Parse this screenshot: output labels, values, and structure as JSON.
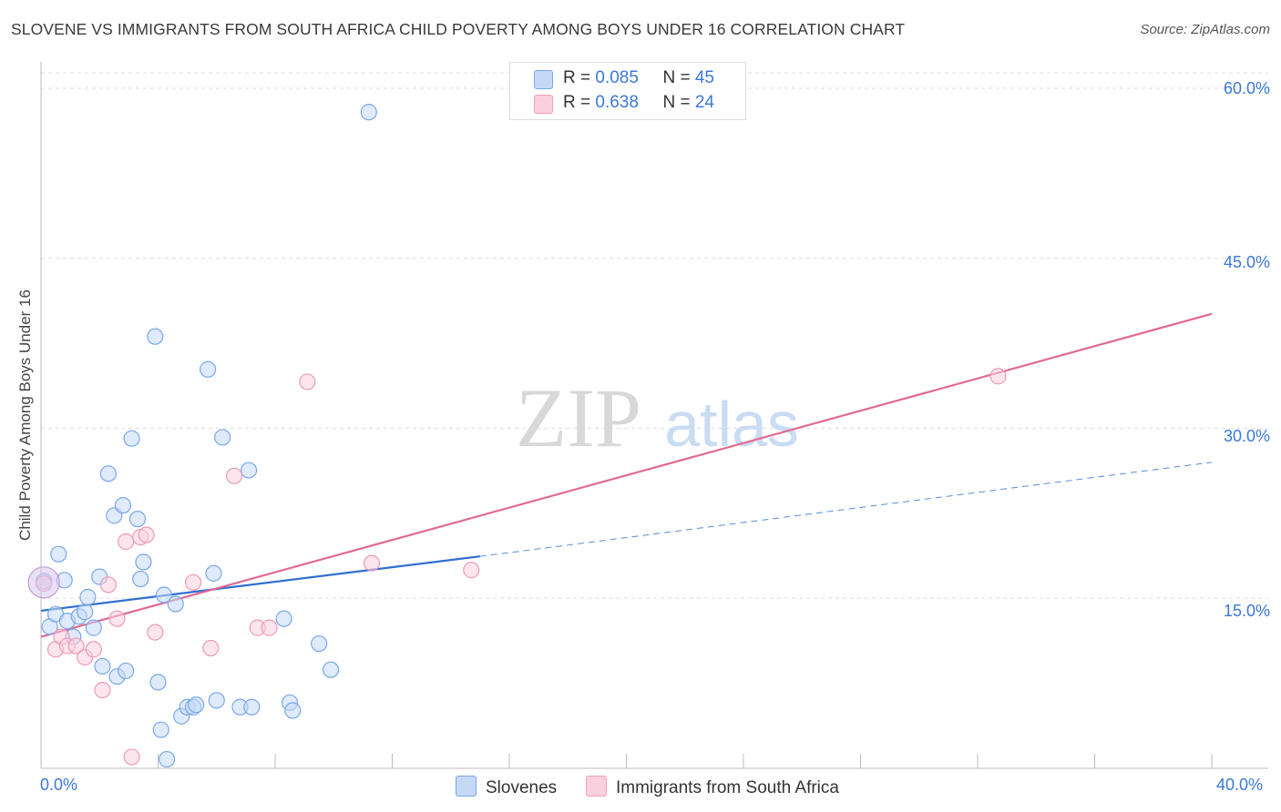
{
  "header": {
    "title": "SLOVENE VS IMMIGRANTS FROM SOUTH AFRICA CHILD POVERTY AMONG BOYS UNDER 16 CORRELATION CHART",
    "source": "Source: ZipAtlas.com"
  },
  "watermark": {
    "zip": "ZIP",
    "atlas": "atlas"
  },
  "legend": {
    "rows": [
      {
        "r_label": "R = ",
        "r_value": "0.085",
        "n_label": "N = ",
        "n_value": "45"
      },
      {
        "r_label": "R = ",
        "r_value": "0.638",
        "n_label": "N = ",
        "n_value": "24"
      }
    ]
  },
  "chart_data": {
    "type": "scatter",
    "title": "SLOVENE VS IMMIGRANTS FROM SOUTH AFRICA CHILD POVERTY AMONG BOYS UNDER 16 CORRELATION CHART",
    "xlabel": "",
    "ylabel": "Child Poverty Among Boys Under 16",
    "xlim": [
      0,
      40
    ],
    "ylim": [
      0,
      62
    ],
    "x_tick_labels": [
      "0.0%",
      "40.0%"
    ],
    "y_tick_labels": [
      "15.0%",
      "30.0%",
      "45.0%",
      "60.0%"
    ],
    "y_ticks": [
      15,
      30,
      45,
      60
    ],
    "colors": {
      "slovenes": "#7aa8e8",
      "south_africa": "#f0a0bc",
      "slovenes_line": "#2f6fd0",
      "south_africa_line": "#e06a93"
    },
    "series": [
      {
        "name": "Slovenes",
        "points": [
          [
            0.1,
            16.5
          ],
          [
            0.3,
            12.5
          ],
          [
            0.5,
            13.6
          ],
          [
            0.6,
            18.9
          ],
          [
            0.8,
            16.6
          ],
          [
            0.9,
            13.0
          ],
          [
            1.1,
            11.6
          ],
          [
            1.3,
            13.4
          ],
          [
            1.5,
            13.8
          ],
          [
            1.6,
            15.1
          ],
          [
            1.8,
            12.4
          ],
          [
            2.0,
            16.9
          ],
          [
            2.1,
            9.0
          ],
          [
            2.3,
            26.0
          ],
          [
            2.5,
            22.3
          ],
          [
            2.6,
            8.1
          ],
          [
            2.8,
            23.2
          ],
          [
            2.9,
            8.6
          ],
          [
            3.1,
            29.1
          ],
          [
            3.3,
            22.0
          ],
          [
            3.4,
            16.7
          ],
          [
            3.5,
            18.2
          ],
          [
            3.9,
            38.1
          ],
          [
            4.0,
            7.6
          ],
          [
            4.1,
            3.4
          ],
          [
            4.2,
            15.3
          ],
          [
            4.3,
            0.8
          ],
          [
            4.6,
            14.5
          ],
          [
            4.8,
            4.6
          ],
          [
            5.0,
            5.4
          ],
          [
            5.2,
            5.4
          ],
          [
            5.3,
            5.6
          ],
          [
            5.7,
            35.2
          ],
          [
            5.9,
            17.2
          ],
          [
            6.0,
            6.0
          ],
          [
            6.2,
            29.2
          ],
          [
            6.8,
            5.4
          ],
          [
            7.1,
            26.3
          ],
          [
            7.2,
            5.4
          ],
          [
            8.3,
            13.2
          ],
          [
            8.5,
            5.8
          ],
          [
            8.6,
            5.1
          ],
          [
            9.5,
            11.0
          ],
          [
            9.9,
            8.7
          ],
          [
            11.2,
            57.9
          ]
        ]
      },
      {
        "name": "Immigrants from South Africa",
        "points": [
          [
            0.1,
            16.3
          ],
          [
            0.5,
            10.5
          ],
          [
            0.7,
            11.6
          ],
          [
            0.9,
            10.8
          ],
          [
            1.2,
            10.8
          ],
          [
            1.5,
            9.8
          ],
          [
            1.8,
            10.5
          ],
          [
            2.1,
            6.9
          ],
          [
            2.3,
            16.2
          ],
          [
            2.6,
            13.2
          ],
          [
            2.9,
            20.0
          ],
          [
            3.1,
            1.0
          ],
          [
            3.4,
            20.4
          ],
          [
            3.6,
            20.6
          ],
          [
            3.9,
            12.0
          ],
          [
            5.2,
            16.4
          ],
          [
            5.8,
            10.6
          ],
          [
            6.6,
            25.8
          ],
          [
            7.4,
            12.4
          ],
          [
            7.8,
            12.4
          ],
          [
            9.1,
            34.1
          ],
          [
            11.3,
            18.1
          ],
          [
            14.7,
            17.5
          ],
          [
            32.7,
            34.6
          ]
        ]
      }
    ],
    "trendlines": [
      {
        "name": "Slovenes",
        "x": [
          0,
          15
        ],
        "y": [
          13.9,
          18.7
        ],
        "dashed_extension": {
          "x": [
            15,
            40
          ],
          "y": [
            18.7,
            27.0
          ]
        }
      },
      {
        "name": "Immigrants from South Africa",
        "x": [
          0,
          40
        ],
        "y": [
          11.6,
          40.1
        ]
      }
    ],
    "legend_entries": [
      "Slovenes",
      "Immigrants from South Africa"
    ]
  }
}
